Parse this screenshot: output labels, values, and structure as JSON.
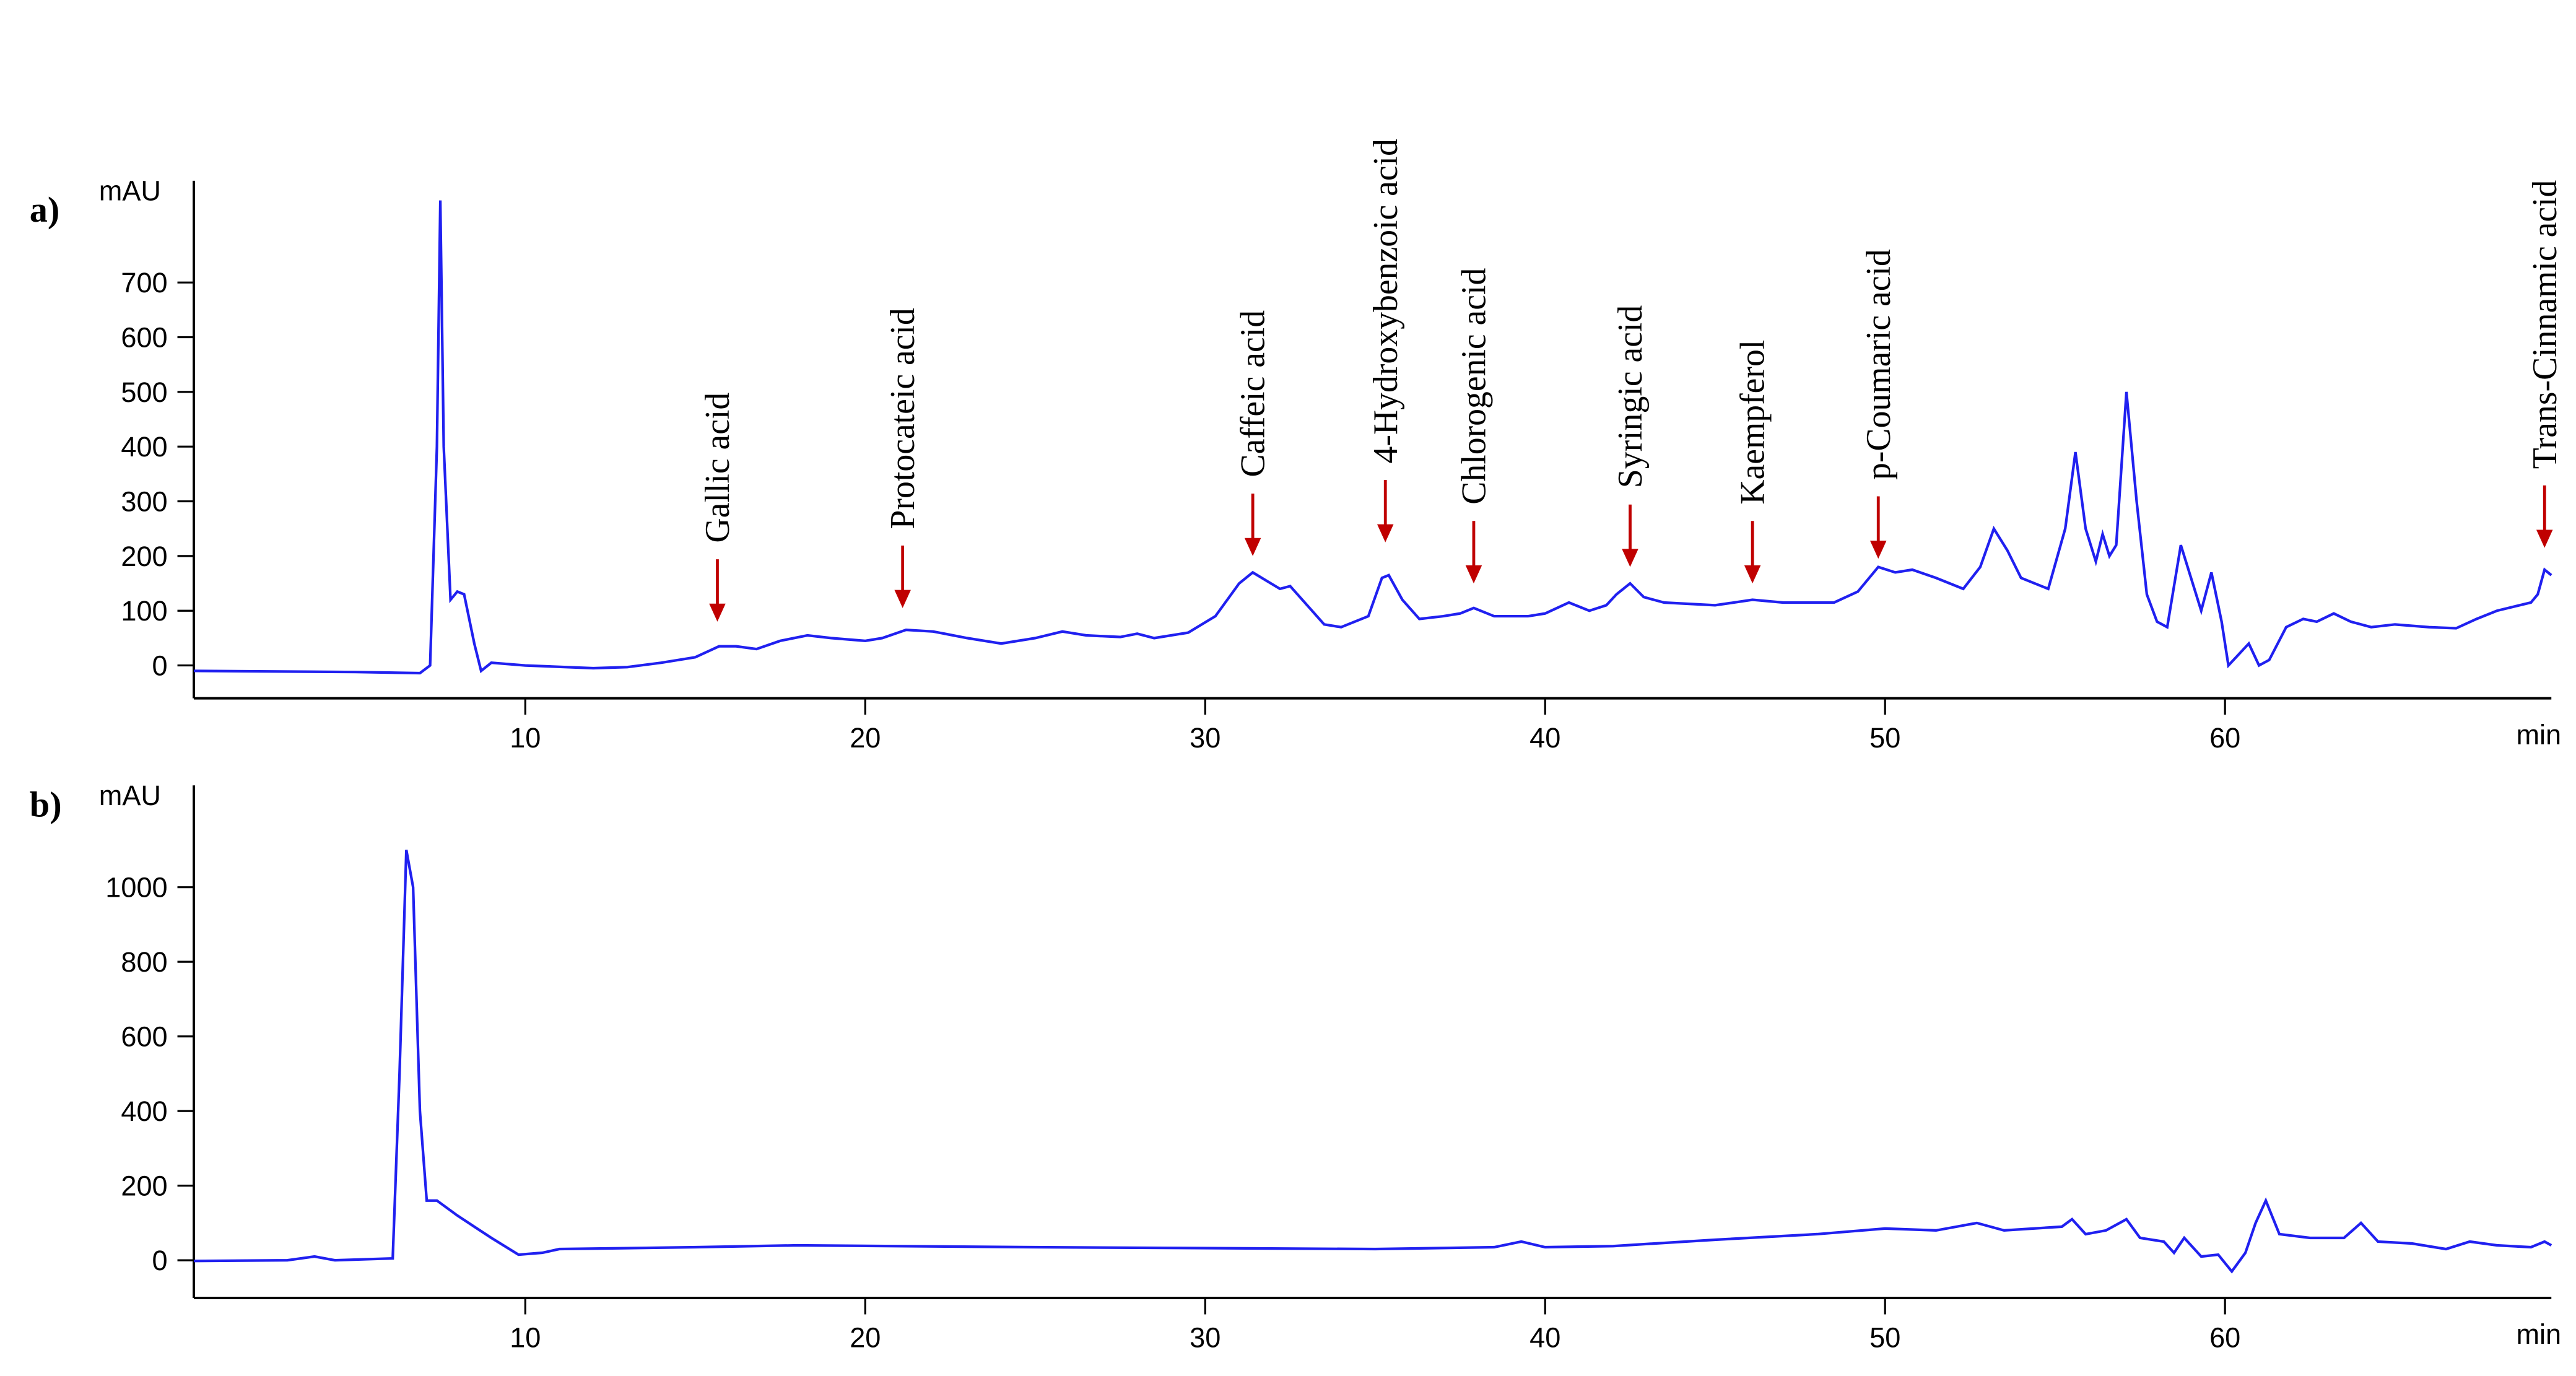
{
  "chart_data": [
    {
      "type": "line",
      "panel_label": "a)",
      "ylabel": "mAU",
      "xlabel": "min",
      "color": "#2020f0",
      "xlim": [
        0.25,
        69.6
      ],
      "ylim": [
        -60,
        886
      ],
      "xticks": [
        10,
        20,
        30,
        40,
        50,
        60
      ],
      "yticks": [
        0,
        100,
        200,
        300,
        400,
        500,
        600,
        700
      ],
      "x": [
        0.25,
        5,
        6.9,
        7.2,
        7.4,
        7.5,
        7.6,
        7.8,
        8.0,
        8.2,
        8.5,
        8.7,
        9.0,
        10,
        12,
        13,
        14,
        15,
        15.7,
        16.2,
        16.8,
        17.5,
        18.3,
        19,
        20,
        20.5,
        21.2,
        22,
        23,
        24,
        25,
        25.8,
        26.5,
        27.5,
        28,
        28.5,
        29.5,
        30.3,
        31.0,
        31.4,
        31.8,
        32.2,
        32.5,
        33,
        33.5,
        34,
        34.8,
        35.2,
        35.4,
        35.8,
        36.3,
        37,
        37.5,
        37.9,
        38.5,
        39.5,
        40,
        40.7,
        41.3,
        41.8,
        42.1,
        42.5,
        42.9,
        43.5,
        45,
        46.1,
        47,
        48.5,
        49.2,
        49.8,
        50.3,
        50.8,
        51.5,
        52.3,
        52.8,
        53.2,
        53.6,
        54,
        54.4,
        54.8,
        55.3,
        55.6,
        55.9,
        56.2,
        56.4,
        56.6,
        56.8,
        57.1,
        57.4,
        57.7,
        58,
        58.3,
        58.7,
        59,
        59.3,
        59.6,
        59.9,
        60.1,
        60.4,
        60.7,
        61,
        61.3,
        61.8,
        62.3,
        62.7,
        63.2,
        63.7,
        64.3,
        65,
        66,
        66.8,
        67.4,
        68,
        69,
        69.2,
        69.4,
        69.6
      ],
      "values": [
        -10,
        -12,
        -14,
        0,
        400,
        850,
        400,
        120,
        135,
        130,
        40,
        -10,
        5,
        0,
        -5,
        -3,
        5,
        15,
        35,
        35,
        30,
        45,
        55,
        50,
        45,
        50,
        65,
        62,
        50,
        40,
        50,
        62,
        55,
        52,
        58,
        50,
        60,
        90,
        150,
        170,
        155,
        140,
        145,
        110,
        75,
        70,
        90,
        160,
        165,
        120,
        85,
        90,
        95,
        105,
        90,
        90,
        95,
        115,
        100,
        110,
        130,
        150,
        125,
        115,
        110,
        120,
        115,
        115,
        135,
        180,
        170,
        175,
        160,
        140,
        180,
        250,
        210,
        160,
        150,
        140,
        250,
        390,
        250,
        190,
        240,
        200,
        220,
        500,
        300,
        130,
        80,
        70,
        220,
        160,
        100,
        170,
        80,
        0,
        20,
        40,
        0,
        10,
        70,
        85,
        80,
        95,
        80,
        70,
        75,
        70,
        68,
        85,
        100,
        115,
        130,
        175,
        165
      ],
      "annotations": [
        {
          "text": "Gallic acid",
          "x": 15.65,
          "y": 80
        },
        {
          "text": "Protocateic acid",
          "x": 21.1,
          "y": 105
        },
        {
          "text": "Caffeic acid",
          "x": 31.4,
          "y": 200
        },
        {
          "text": "4-Hydroxybenzoic acid",
          "x": 35.3,
          "y": 225
        },
        {
          "text": "Chlorogenic acid",
          "x": 37.9,
          "y": 150
        },
        {
          "text": "Syringic acid",
          "x": 42.5,
          "y": 180
        },
        {
          "text": "Kaempferol",
          "x": 46.1,
          "y": 150
        },
        {
          "text": "p-Coumaric acid",
          "x": 49.8,
          "y": 195
        },
        {
          "text": "Trans-Cinnamic acid",
          "x": 69.4,
          "y": 215
        }
      ]
    },
    {
      "type": "line",
      "panel_label": "b)",
      "ylabel": "mAU",
      "xlabel": "min",
      "color": "#2020f0",
      "xlim": [
        0.25,
        69.6
      ],
      "ylim": [
        -101,
        1273
      ],
      "xticks": [
        10,
        20,
        30,
        40,
        50,
        60
      ],
      "yticks": [
        0,
        200,
        400,
        600,
        800,
        1000
      ],
      "x": [
        0.25,
        3,
        3.8,
        4.4,
        6.1,
        6.3,
        6.5,
        6.7,
        6.9,
        7.1,
        7.4,
        8,
        9,
        9.8,
        10.5,
        11,
        15,
        18,
        25,
        35,
        38.5,
        39.3,
        40,
        42,
        45,
        48,
        50,
        51.5,
        52.7,
        53.5,
        55.2,
        55.5,
        55.9,
        56.5,
        57.1,
        57.5,
        58.2,
        58.5,
        58.8,
        59.3,
        59.8,
        60.2,
        60.6,
        60.9,
        61.2,
        61.6,
        62.5,
        63.5,
        64,
        64.5,
        65.5,
        66.5,
        67.2,
        68,
        69,
        69.4,
        69.6
      ],
      "values": [
        -2,
        0,
        10,
        0,
        5,
        500,
        1100,
        1000,
        400,
        160,
        160,
        120,
        60,
        15,
        20,
        30,
        35,
        40,
        35,
        30,
        35,
        50,
        35,
        38,
        55,
        70,
        85,
        80,
        100,
        80,
        90,
        110,
        70,
        80,
        110,
        60,
        50,
        20,
        60,
        10,
        15,
        -30,
        20,
        100,
        160,
        70,
        60,
        60,
        100,
        50,
        45,
        30,
        50,
        40,
        35,
        50,
        40
      ]
    }
  ]
}
